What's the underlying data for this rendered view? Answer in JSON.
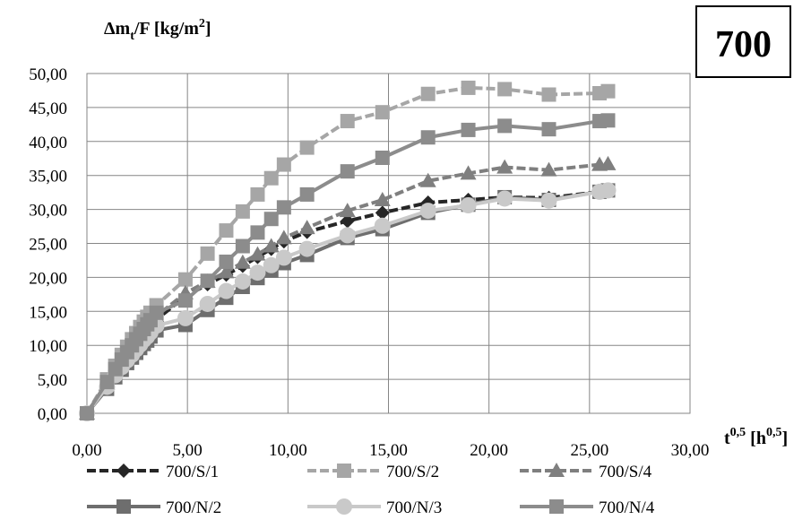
{
  "chart_data": {
    "type": "line",
    "badge": "700",
    "ylabel": {
      "main": "Δm",
      "sub": "t",
      "rest": "/F [kg/m",
      "sup": "2",
      "end": "]"
    },
    "xlabel": {
      "t": "t",
      "t_sup": "0,5",
      "unit_open": " [h",
      "unit_sup": "0,5",
      "unit_close": "]"
    },
    "xlim": [
      0,
      30
    ],
    "ylim": [
      0,
      50
    ],
    "x_ticks": [
      0,
      5,
      10,
      15,
      20,
      25,
      30
    ],
    "x_tick_labels": [
      "0,00",
      "5,00",
      "10,00",
      "15,00",
      "20,00",
      "25,00",
      "30,00"
    ],
    "y_ticks": [
      0,
      5,
      10,
      15,
      20,
      25,
      30,
      35,
      40,
      45,
      50
    ],
    "y_tick_labels": [
      "0,00",
      "5,00",
      "10,00",
      "15,00",
      "20,00",
      "25,00",
      "30,00",
      "35,00",
      "40,00",
      "45,00",
      "50,00"
    ],
    "grid": true,
    "legend_position": "bottom",
    "x": [
      0,
      1,
      1.41,
      1.73,
      2,
      2.24,
      2.45,
      2.65,
      2.83,
      3,
      3.16,
      3.46,
      4.9,
      6,
      6.93,
      7.75,
      8.49,
      9.17,
      9.8,
      10.95,
      12.96,
      14.7,
      16.97,
      18.97,
      20.78,
      22.98,
      25.5,
      25.92
    ],
    "series": [
      {
        "name": "700/S/1",
        "marker": "diamond",
        "color": "#262626",
        "dash": "10,4",
        "values": [
          0,
          4.3,
          6.1,
          7.4,
          8.5,
          9.3,
          10.2,
          10.9,
          11.6,
          12.2,
          12.8,
          13.8,
          17.2,
          19.0,
          20.4,
          21.7,
          23.0,
          24.2,
          25.3,
          26.7,
          28.3,
          29.5,
          31.0,
          31.4,
          31.8,
          31.7,
          32.6,
          32.7
        ]
      },
      {
        "name": "700/S/2",
        "marker": "square",
        "color": "#a6a6a6",
        "dash": "10,4",
        "values": [
          0,
          5.0,
          7.0,
          8.6,
          9.8,
          10.9,
          11.8,
          12.7,
          13.5,
          14.2,
          14.8,
          15.9,
          19.7,
          23.5,
          26.9,
          29.7,
          32.2,
          34.6,
          36.6,
          39.1,
          43.0,
          44.3,
          47.0,
          47.9,
          47.7,
          46.9,
          47.1,
          47.4
        ]
      },
      {
        "name": "700/S/4",
        "marker": "triangle",
        "color": "#7f7f7f",
        "dash": "10,4",
        "values": [
          0,
          4.4,
          6.2,
          7.5,
          8.6,
          9.6,
          10.5,
          11.3,
          12.0,
          12.6,
          13.2,
          14.3,
          17.7,
          19.4,
          20.8,
          22.2,
          23.4,
          24.6,
          25.8,
          27.3,
          29.8,
          31.4,
          34.2,
          35.3,
          36.2,
          35.8,
          36.6,
          36.7
        ]
      },
      {
        "name": "700/N/2",
        "marker": "square",
        "color": "#6e6e6e",
        "dash": "",
        "values": [
          0,
          3.6,
          5.3,
          6.4,
          7.4,
          8.2,
          8.9,
          9.6,
          10.2,
          10.7,
          11.3,
          12.2,
          13.0,
          15.2,
          17.0,
          18.6,
          19.9,
          21.0,
          22.1,
          23.3,
          25.8,
          27.1,
          29.5,
          30.7,
          31.8,
          31.4,
          32.6,
          32.8
        ]
      },
      {
        "name": "700/N/3",
        "marker": "circle",
        "color": "#c9c9c9",
        "dash": "",
        "values": [
          0,
          3.9,
          5.6,
          6.8,
          7.8,
          8.6,
          9.4,
          10.1,
          10.8,
          11.3,
          11.9,
          12.9,
          14.0,
          16.1,
          18.0,
          19.4,
          20.7,
          21.8,
          22.9,
          24.2,
          26.2,
          27.6,
          29.8,
          30.6,
          31.6,
          31.3,
          32.6,
          32.8
        ]
      },
      {
        "name": "700/N/4",
        "marker": "square",
        "color": "#8c8c8c",
        "dash": "",
        "values": [
          0,
          4.6,
          6.5,
          7.9,
          9.0,
          10.0,
          10.9,
          11.7,
          12.4,
          13.1,
          13.7,
          14.8,
          16.6,
          19.5,
          22.3,
          24.6,
          26.6,
          28.6,
          30.3,
          32.2,
          35.6,
          37.6,
          40.6,
          41.7,
          42.3,
          41.8,
          43.0,
          43.1
        ]
      }
    ]
  }
}
